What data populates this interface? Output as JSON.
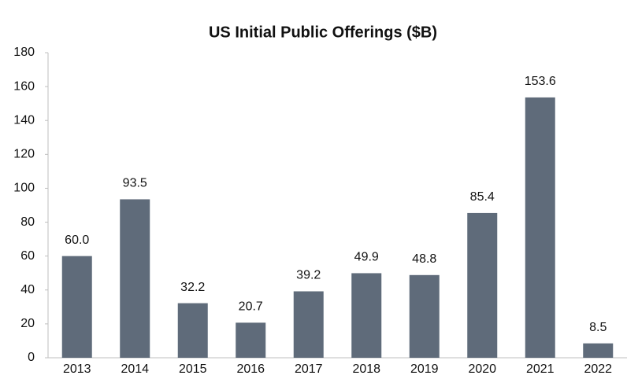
{
  "chart_data": {
    "type": "bar",
    "title": "US Initial Public Offerings ($B)",
    "categories": [
      "2013",
      "2014",
      "2015",
      "2016",
      "2017",
      "2018",
      "2019",
      "2020",
      "2021",
      "2022"
    ],
    "values": [
      60,
      93.5,
      32.2,
      20.7,
      39.2,
      49.9,
      48.8,
      85.4,
      153.6,
      8.5
    ],
    "value_labels": [
      "60.0",
      "93.5",
      "32.2",
      "20.7",
      "39.2",
      "49.9",
      "48.8",
      "85.4",
      "153.6",
      "8.5"
    ],
    "color": "#5f6b7a",
    "ylim": [
      0,
      180
    ],
    "yticks": [
      0,
      20,
      40,
      60,
      80,
      100,
      120,
      140,
      160,
      180
    ],
    "grid": false
  }
}
